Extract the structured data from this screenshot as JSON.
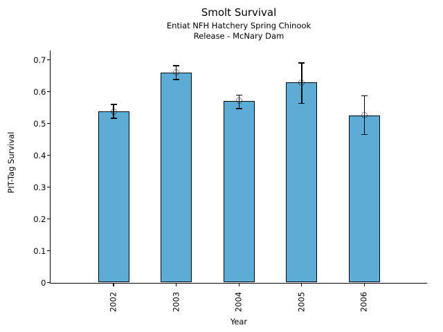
{
  "chart_data": {
    "type": "bar",
    "title": "Smolt Survival",
    "subtitle_line1": "Entiat NFH Hatchery Spring Chinook",
    "subtitle_line2": "Release - McNary Dam",
    "xlabel": "Year",
    "ylabel": "PIT-Tag Survival",
    "categories": [
      "2002",
      "2003",
      "2004",
      "2005",
      "2006"
    ],
    "values": [
      0.538,
      0.66,
      0.571,
      0.629,
      0.526
    ],
    "error_low": [
      0.516,
      0.638,
      0.547,
      0.563,
      0.465
    ],
    "error_high": [
      0.56,
      0.682,
      0.589,
      0.69,
      0.587
    ],
    "yticks": [
      0,
      0.1,
      0.2,
      0.3,
      0.4,
      0.5,
      0.6,
      0.7
    ],
    "ytick_labels": [
      "0",
      "0.1",
      "0.2",
      "0.3",
      "0.4",
      "0.5",
      "0.6",
      "0.7"
    ],
    "ylim": [
      0,
      0.729
    ],
    "xtick_rotation_degrees": 90,
    "bar_color": "#5CACD6",
    "bar_edge_color": "#000000",
    "error_bar_color": "#000000",
    "marker": "open-dotted-circle",
    "grid": false,
    "legend": "none",
    "background_color": "#ffffff"
  }
}
